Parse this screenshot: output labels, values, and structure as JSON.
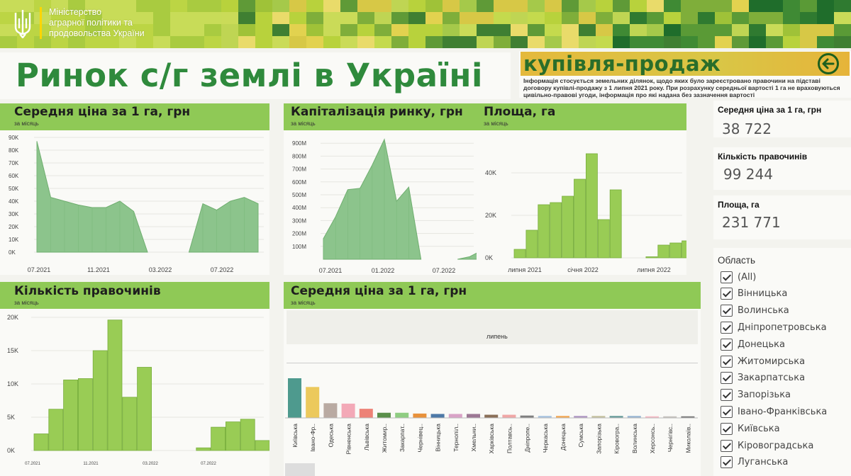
{
  "header": {
    "ministry_line1": "Міністерство",
    "ministry_line2": "аграрної політики та",
    "ministry_line3": "продовольства України",
    "title": "Ринок с/г землі в Україні"
  },
  "section": {
    "title": "купівля-продаж",
    "note": "Інформація стосується земельних ділянок, щодо яких було зареєстровано правочини на підставі договору купівлі-продажу з 1 липня 2021 року. При розрахунку середньої вартості 1 га не враховуються цивільно-правові угоди, інформація про які надана без зазначення вартості",
    "back_icon": "arrow-left-circle-icon"
  },
  "colors": {
    "accent": "#8fc956",
    "title_green": "#2f8a3c",
    "area_fill": "#8cc48c",
    "bar_fill": "#99cc55"
  },
  "panels": {
    "avg_price": {
      "title": "Середня ціна за 1 га, грн",
      "subtitle": "за місяць"
    },
    "capitalization": {
      "title": "Капіталізація ринку, грн",
      "subtitle": "за місяць"
    },
    "area": {
      "title": "Площа, га",
      "subtitle": "за місяць"
    },
    "deals": {
      "title": "Кількість правочинів",
      "subtitle": "за місяць"
    },
    "avg_region": {
      "title": "Середня ціна за 1 га, грн",
      "subtitle": "за місяць",
      "month_label": "липень"
    }
  },
  "kpis": [
    {
      "label": "Середня ціна за 1 га, грн",
      "value": "38 722"
    },
    {
      "label": "Кількість правочинів",
      "value": "99 244"
    },
    {
      "label": "Площа, га",
      "value": "231 771"
    }
  ],
  "filter": {
    "title": "Область",
    "items": [
      "(All)",
      "Вінницька",
      "Волинська",
      "Дніпропетровська",
      "Донецька",
      "Житомирська",
      "Закарпатська",
      "Запорізька",
      "Івано-Франківська",
      "Київська",
      "Кіровоградська",
      "Луганська"
    ]
  },
  "chart_data": [
    {
      "id": "avg_price",
      "type": "area",
      "title": "Середня ціна за 1 га, грн",
      "yticks": [
        "0K",
        "10K",
        "20K",
        "30K",
        "40K",
        "50K",
        "60K",
        "70K",
        "80K",
        "90K"
      ],
      "xticks": [
        "07.2021",
        "11.2021",
        "03.2022",
        "07.2022"
      ],
      "ylim": [
        0,
        90000
      ],
      "segments": [
        [
          [
            0,
            87000
          ],
          [
            1,
            43000
          ],
          [
            2,
            40000
          ],
          [
            3,
            37000
          ],
          [
            4,
            35000
          ],
          [
            5,
            35000
          ],
          [
            6,
            40000
          ],
          [
            7,
            32000
          ],
          [
            8,
            0
          ]
        ],
        [
          [
            11,
            0
          ],
          [
            12,
            38000
          ],
          [
            13,
            33000
          ],
          [
            14,
            40000
          ],
          [
            15,
            43000
          ],
          [
            16,
            38000
          ]
        ]
      ]
    },
    {
      "id": "capitalization",
      "type": "area",
      "title": "Капіталізація ринку, грн",
      "yticks": [
        "100M",
        "200M",
        "300M",
        "400M",
        "500M",
        "600M",
        "700M",
        "800M",
        "900M"
      ],
      "xticks": [
        "07.2021",
        "01.2022",
        "07.2022"
      ],
      "ylim": [
        0,
        1000000000
      ],
      "segments": [
        [
          [
            0,
            160000000
          ],
          [
            1,
            330000000
          ],
          [
            2,
            540000000
          ],
          [
            3,
            550000000
          ],
          [
            4,
            730000000
          ],
          [
            5,
            930000000
          ],
          [
            6,
            450000000
          ],
          [
            7,
            560000000
          ],
          [
            8,
            0
          ]
        ],
        [
          [
            11,
            0
          ],
          [
            12,
            20000000
          ],
          [
            13,
            70000000
          ],
          [
            14,
            80000000
          ],
          [
            15,
            20000000
          ]
        ]
      ]
    },
    {
      "id": "area",
      "type": "bar",
      "title": "Площа, га",
      "yticks": [
        "0K",
        "20K",
        "40K"
      ],
      "xticks": [
        "липня 2021",
        "січня 2022",
        "липня 2022"
      ],
      "ylim": [
        0,
        55000
      ],
      "values": [
        4000,
        13000,
        25000,
        26000,
        29000,
        37000,
        49000,
        18000,
        32000,
        0,
        0,
        500,
        6000,
        7000,
        8000,
        2500
      ]
    },
    {
      "id": "deals",
      "type": "bar",
      "title": "Кількість правочинів",
      "yticks": [
        "0K",
        "5K",
        "10K",
        "15K",
        "20K"
      ],
      "xticks": [
        "07.2021",
        "11.2021",
        "03.2022",
        "07.2022"
      ],
      "ylim": [
        0,
        20000
      ],
      "values": [
        2500,
        6200,
        10600,
        10800,
        15000,
        19600,
        8000,
        12500,
        0,
        0,
        0,
        400,
        3500,
        4300,
        4700,
        1500
      ]
    },
    {
      "id": "avg_region",
      "type": "bar",
      "title": "Середня ціна за 1 га, грн",
      "categories": [
        "Київська",
        "Івано-Фр..",
        "Одеська",
        "Рівненська",
        "Львівська",
        "Житомир..",
        "Закарпат..",
        "Чернівец..",
        "Вінницька",
        "Тернопіл..",
        "Хмельни..",
        "Харківська",
        "Полтавсь..",
        "Дніпропе..",
        "Черкаська",
        "Донецька",
        "Сумська",
        "Запорізька",
        "Кіровогра..",
        "Волинська",
        "Херсонсь..",
        "Чернігівс..",
        "Миколаїв.."
      ],
      "values": [
        100,
        78,
        37,
        36,
        23,
        13,
        13,
        11,
        10,
        10,
        10,
        8,
        8,
        6,
        5,
        5,
        5,
        5,
        5,
        5,
        4,
        4,
        4
      ],
      "colors": [
        "#4e9a8e",
        "#ecc95c",
        "#b9aaa2",
        "#f3a9b7",
        "#ed8277",
        "#5a8f4a",
        "#8fcd82",
        "#e8913b",
        "#4d79a7",
        "#d9a3c7",
        "#9c7794",
        "#8a6f58",
        "#f0a7a6",
        "#7f7f7f",
        "#a8c4e0",
        "#f3a855",
        "#b098c3",
        "#c5c2a1",
        "#6a9e9c",
        "#9ab6d3",
        "#f6b9c4",
        "#c5c1bc",
        "#777777"
      ]
    }
  ]
}
